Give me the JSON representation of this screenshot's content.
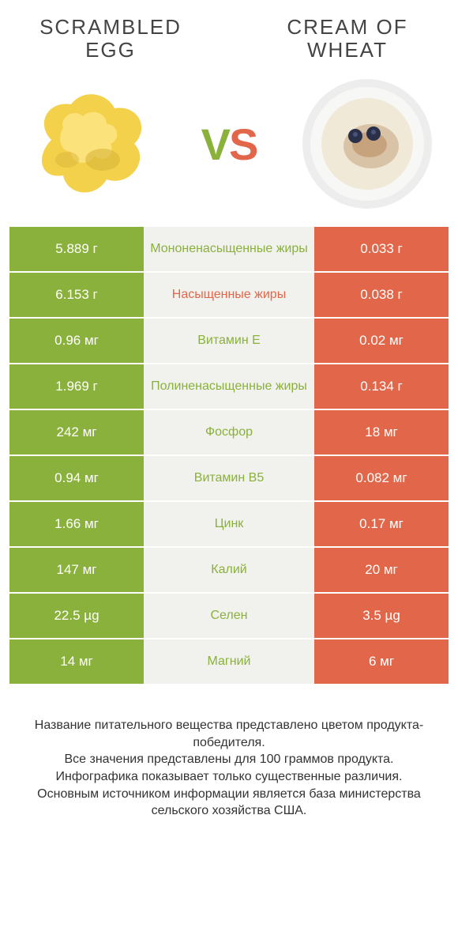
{
  "header": {
    "left_title": "SCRAMBLED EGG",
    "right_title": "CREAM OF WHEAT",
    "vs_v": "V",
    "vs_s": "S"
  },
  "colors": {
    "left_win": "#8ab13c",
    "right_win": "#e2674a",
    "neutral_bg": "#f1f1ed",
    "text_dark": "#444444",
    "footer_text": "#333333"
  },
  "table": {
    "rows": [
      {
        "left": "5.889 г",
        "label": "Мононенасыщенные жиры",
        "right": "0.033 г",
        "winner": "left"
      },
      {
        "left": "6.153 г",
        "label": "Насыщенные жиры",
        "right": "0.038 г",
        "winner": "right"
      },
      {
        "left": "0.96 мг",
        "label": "Витамин E",
        "right": "0.02 мг",
        "winner": "left"
      },
      {
        "left": "1.969 г",
        "label": "Полиненасыщенные жиры",
        "right": "0.134 г",
        "winner": "left"
      },
      {
        "left": "242 мг",
        "label": "Фосфор",
        "right": "18 мг",
        "winner": "left"
      },
      {
        "left": "0.94 мг",
        "label": "Витамин B5",
        "right": "0.082 мг",
        "winner": "left"
      },
      {
        "left": "1.66 мг",
        "label": "Цинк",
        "right": "0.17 мг",
        "winner": "left"
      },
      {
        "left": "147 мг",
        "label": "Калий",
        "right": "20 мг",
        "winner": "left"
      },
      {
        "left": "22.5 µg",
        "label": "Селен",
        "right": "3.5 µg",
        "winner": "left"
      },
      {
        "left": "14 мг",
        "label": "Магний",
        "right": "6 мг",
        "winner": "left"
      }
    ]
  },
  "footer": {
    "line1": "Название питательного вещества представлено цветом продукта-победителя.",
    "line2": "Все значения представлены для 100 граммов продукта.",
    "line3": "Инфографика показывает только существенные различия.",
    "line4": "Основным источником информации является база министерства сельского хозяйства США."
  },
  "images": {
    "egg_colors": {
      "base": "#f3d14a",
      "light": "#fce27a",
      "shadow": "#d9b53a"
    },
    "bowl_colors": {
      "plate": "#ededed",
      "rim": "#f7f7f5",
      "porridge": "#f0e9d8",
      "cinnamon": "#b07d4a",
      "berry": "#2a2f4a"
    }
  }
}
